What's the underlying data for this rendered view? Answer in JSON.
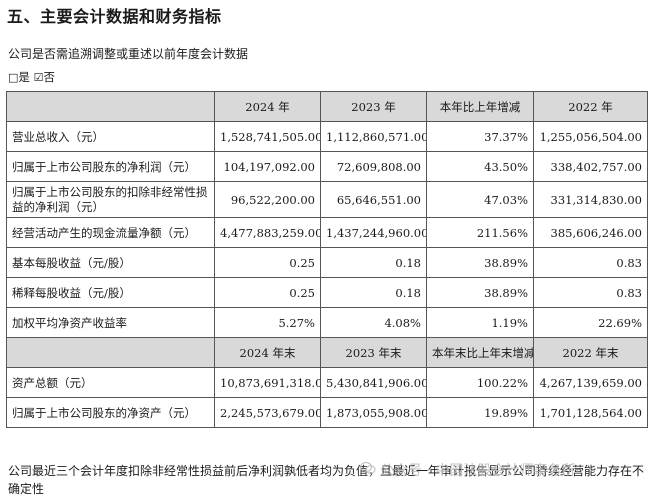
{
  "section_title": "五、主要会计数据和财务指标",
  "question": "公司是否需追溯调整或重述以前年度会计数据",
  "options": {
    "unchecked_box": "□",
    "yes": "是",
    "checked_box": "☑",
    "no": "否"
  },
  "table": {
    "header_top": [
      "",
      "2024 年",
      "2023 年",
      "本年比上年增减",
      "2022 年"
    ],
    "rows_top": [
      {
        "label": "营业总收入（元）",
        "v2024": "1,528,741,505.00",
        "v2023": "1,112,860,571.00",
        "change": "37.37%",
        "v2022": "1,255,056,504.00"
      },
      {
        "label": "归属于上市公司股东的净利润（元）",
        "v2024": "104,197,092.00",
        "v2023": "72,609,808.00",
        "change": "43.50%",
        "v2022": "338,402,757.00"
      },
      {
        "label": "归属于上市公司股东的扣除非经常性损益的净利润（元）",
        "v2024": "96,522,200.00",
        "v2023": "65,646,551.00",
        "change": "47.03%",
        "v2022": "331,314,830.00"
      },
      {
        "label": "经营活动产生的现金流量净额（元）",
        "v2024": "4,477,883,259.00",
        "v2023": "1,437,244,960.00",
        "change": "211.56%",
        "v2022": "385,606,246.00"
      },
      {
        "label": "基本每股收益（元/股）",
        "v2024": "0.25",
        "v2023": "0.18",
        "change": "38.89%",
        "v2022": "0.83"
      },
      {
        "label": "稀释每股收益（元/股）",
        "v2024": "0.25",
        "v2023": "0.18",
        "change": "38.89%",
        "v2022": "0.83"
      },
      {
        "label": "加权平均净资产收益率",
        "v2024": "5.27%",
        "v2023": "4.08%",
        "change": "1.19%",
        "v2022": "22.69%"
      }
    ],
    "header_bottom": [
      "",
      "2024 年末",
      "2023 年末",
      "本年末比上年末增减",
      "2022 年末"
    ],
    "rows_bottom": [
      {
        "label": "资产总额（元）",
        "v2024": "10,873,691,318.00",
        "v2023": "5,430,841,906.00",
        "change": "100.22%",
        "v2022": "4,267,139,659.00"
      },
      {
        "label": "归属于上市公司股东的净资产（元）",
        "v2024": "2,245,573,679.00",
        "v2023": "1,873,055,908.00",
        "change": "19.89%",
        "v2022": "1,701,128,564.00"
      }
    ]
  },
  "footnote": "公司最近三个会计年度扣除非经常性损益前后净利润孰低者均为负值，且最近一年审计报告显示公司持续经营能力存在不确定性",
  "watermark": {
    "icon": "wechat-icon",
    "text": "公众号 · 中国法股会计师事务所"
  }
}
